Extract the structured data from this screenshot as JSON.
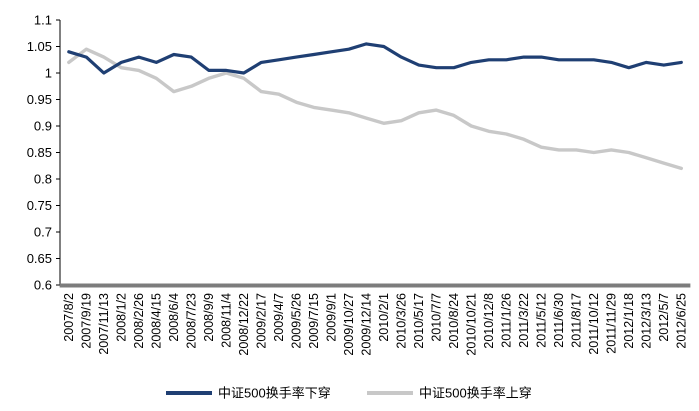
{
  "chart_data": {
    "type": "line",
    "title": "",
    "xlabel": "",
    "ylabel": "",
    "ylim": [
      0.6,
      1.1
    ],
    "yticks": [
      "0.6",
      "0.65",
      "0.7",
      "0.75",
      "0.8",
      "0.85",
      "0.9",
      "0.95",
      "1",
      "1.05",
      "1.1"
    ],
    "categories": [
      "2007/8/2",
      "2007/9/19",
      "2007/11/13",
      "2008/1/2",
      "2008/2/26",
      "2008/4/15",
      "2008/6/4",
      "2008/7/23",
      "2008/9/9",
      "2008/11/4",
      "2008/12/22",
      "2009/2/17",
      "2009/4/7",
      "2009/5/26",
      "2009/7/15",
      "2009/9/1",
      "2009/10/27",
      "2009/12/14",
      "2010/2/1",
      "2010/3/26",
      "2010/5/17",
      "2010/7/7",
      "2010/8/24",
      "2010/10/21",
      "2010/12/8",
      "2011/1/26",
      "2011/3/22",
      "2011/5/12",
      "2011/6/30",
      "2011/8/17",
      "2011/10/12",
      "2011/11/29",
      "2012/1/18",
      "2012/3/13",
      "2012/5/7",
      "2012/6/25"
    ],
    "legend_position": "bottom",
    "grid": false,
    "series": [
      {
        "name": "中证500换手率下穿",
        "color": "#1F3F73",
        "values": [
          1.04,
          1.03,
          1.0,
          1.02,
          1.03,
          1.02,
          1.035,
          1.03,
          1.005,
          1.005,
          1.0,
          1.02,
          1.025,
          1.03,
          1.035,
          1.04,
          1.045,
          1.055,
          1.05,
          1.03,
          1.015,
          1.01,
          1.01,
          1.02,
          1.025,
          1.025,
          1.03,
          1.03,
          1.025,
          1.025,
          1.025,
          1.02,
          1.01,
          1.02,
          1.015,
          1.02
        ]
      },
      {
        "name": "中证500换手率上穿",
        "color": "#C8C8C8",
        "values": [
          1.02,
          1.045,
          1.03,
          1.01,
          1.005,
          0.99,
          0.965,
          0.975,
          0.99,
          1.0,
          0.99,
          0.965,
          0.96,
          0.945,
          0.935,
          0.93,
          0.925,
          0.915,
          0.905,
          0.91,
          0.925,
          0.93,
          0.92,
          0.9,
          0.89,
          0.885,
          0.875,
          0.86,
          0.855,
          0.855,
          0.85,
          0.855,
          0.85,
          0.84,
          0.83,
          0.82
        ]
      }
    ]
  }
}
